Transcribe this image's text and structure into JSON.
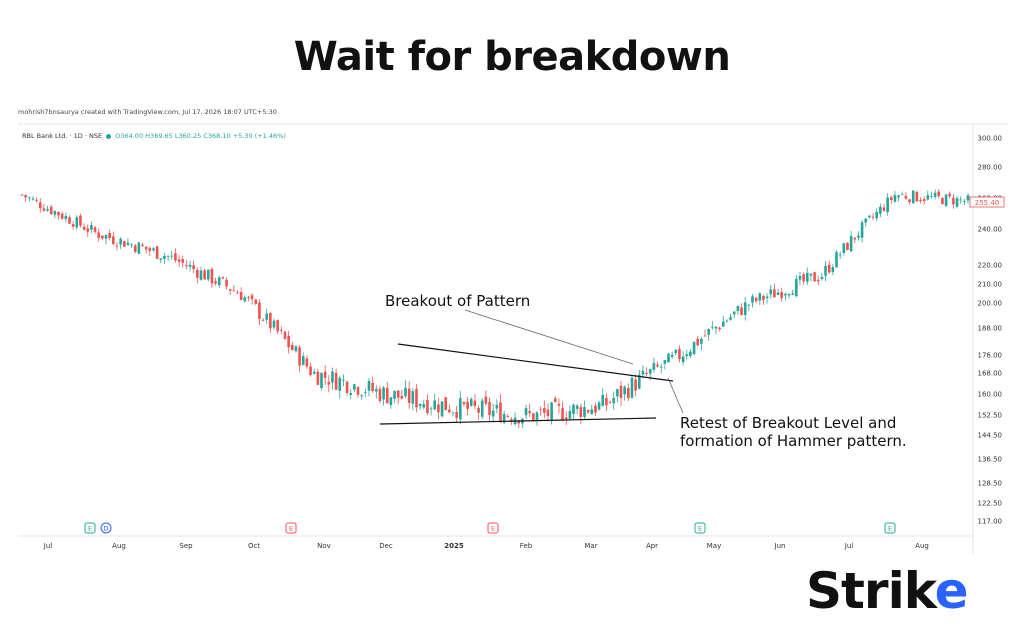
{
  "headline": "Wait for breakdown",
  "chart_header": {
    "credit": "mohrish7bnsaurya created with TradingView.com, Jul 17, 2026 18:07 UTC+5:30",
    "symbol": "RBL Bank Ltd. · 1D · NSE",
    "open": "O364.00",
    "high": "H369.65",
    "low": "L360.25",
    "close": "C368.10",
    "change": "+5.30 (+1.46%)"
  },
  "logo": {
    "text_a": "Strik",
    "text_b": "e"
  },
  "chart_data": {
    "type": "candlestick",
    "price_axis_labels": [
      "300.00",
      "280.00",
      "260.00",
      "240.00",
      "220.00",
      "210.00",
      "200.00",
      "188.00",
      "176.00",
      "168.00",
      "160.00",
      "152.50",
      "144.50",
      "136.50",
      "128.50",
      "122.50",
      "117.00"
    ],
    "last_price_tag": "255.40",
    "time_axis_labels": [
      "Jul",
      "Aug",
      "Sep",
      "Oct",
      "Nov",
      "Dec",
      "2025",
      "Feb",
      "Mar",
      "Apr",
      "May",
      "Jun",
      "Jul",
      "Aug"
    ],
    "event_markers": [
      {
        "label": "E",
        "after": "Jul"
      },
      {
        "label": "D",
        "after": "Jul"
      },
      {
        "label": "E",
        "after": "Oct"
      },
      {
        "label": "E",
        "after": "2025"
      },
      {
        "label": "E",
        "after": "Apr"
      },
      {
        "label": "E",
        "after": "Jul"
      }
    ],
    "annotations": [
      "Breakout of Pattern",
      "Retest of Breakout Level and",
      "formation of Hammer pattern."
    ],
    "approx_close_path": [
      {
        "t": "Jul",
        "close": 262
      },
      {
        "t": "Aug",
        "close": 238
      },
      {
        "t": "Sep",
        "close": 225
      },
      {
        "t": "Oct",
        "close": 205
      },
      {
        "t": "Nov",
        "close": 168
      },
      {
        "t": "Dec",
        "close": 160
      },
      {
        "t": "2025",
        "close": 155
      },
      {
        "t": "Feb",
        "close": 152
      },
      {
        "t": "Mar",
        "close": 156
      },
      {
        "t": "Apr",
        "close": 175
      },
      {
        "t": "May",
        "close": 200
      },
      {
        "t": "Jun",
        "close": 215
      },
      {
        "t": "Jul",
        "close": 262
      },
      {
        "t": "Aug",
        "close": 258
      }
    ],
    "colors": {
      "up": "#26a69a",
      "down": "#ef5350",
      "tag": "#ef5350",
      "event": "#26a69a",
      "event_div": "#2962ff"
    }
  }
}
